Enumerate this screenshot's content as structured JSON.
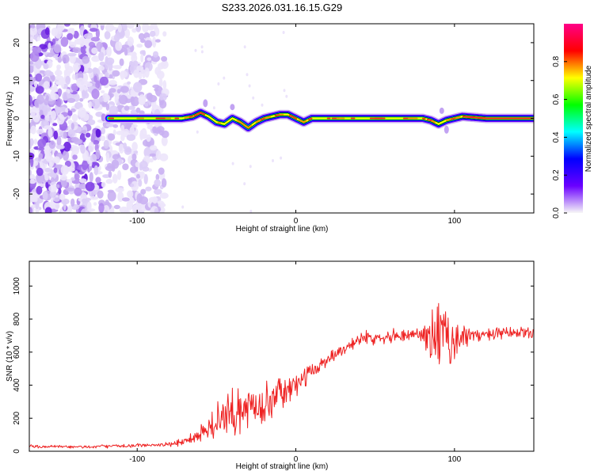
{
  "chart_data": [
    {
      "type": "heatmap",
      "title": "S233.2026.031.16.15.G29",
      "xlabel": "Height of straight line (km)",
      "ylabel": "Frequency (Hz)",
      "xlim": [
        -168,
        150
      ],
      "ylim": [
        -25,
        25
      ],
      "x_ticks": [
        -100,
        0,
        100
      ],
      "y_ticks": [
        -20,
        -10,
        0,
        10,
        20
      ],
      "grid": false,
      "colorbar": {
        "label": "Normalized spectral amplitude",
        "ticks": [
          "0.0",
          "0.2",
          "0.4",
          "0.6",
          "0.8"
        ],
        "range": [
          0,
          1
        ],
        "colors": [
          "#f7f7f7",
          "#6a00ff",
          "#0000ff",
          "#00ffff",
          "#00ff00",
          "#ffff00",
          "#ff0000",
          "#ff0088"
        ]
      },
      "ridge": {
        "x": [
          -118,
          -100,
          -80,
          -72,
          -65,
          -60,
          -55,
          -50,
          -45,
          -40,
          -35,
          -30,
          -25,
          -20,
          -15,
          -10,
          -5,
          0,
          5,
          10,
          20,
          40,
          60,
          80,
          85,
          90,
          95,
          100,
          105,
          120,
          150
        ],
        "f": [
          0,
          0,
          0,
          0,
          0.5,
          1.5,
          0.5,
          -1,
          -1.5,
          0,
          -1,
          -2.5,
          -1,
          0,
          0.5,
          1,
          1,
          0,
          -1,
          0,
          0,
          0,
          0,
          0,
          -0.5,
          -1.5,
          -0.5,
          0,
          0.5,
          0,
          0
        ]
      },
      "noise_region_x": [
        -168,
        -82
      ]
    },
    {
      "type": "line",
      "title": "",
      "xlabel": "Height of straight line (km)",
      "ylabel": "SNR (10 * v/v)",
      "xlim": [
        -168,
        150
      ],
      "ylim": [
        0,
        1150
      ],
      "x_ticks": [
        -100,
        0,
        100
      ],
      "y_ticks": [
        0,
        200,
        400,
        600,
        800,
        1000
      ],
      "grid": false,
      "series": [
        {
          "name": "SNR",
          "color": "#ee2222",
          "envelope_x": [
            -168,
            -140,
            -100,
            -80,
            -70,
            -60,
            -50,
            -40,
            -30,
            -20,
            -10,
            0,
            10,
            20,
            30,
            40,
            60,
            80,
            90,
            100,
            110,
            130,
            150
          ],
          "envelope_mean": [
            30,
            25,
            35,
            40,
            60,
            110,
            170,
            230,
            260,
            300,
            340,
            400,
            480,
            560,
            620,
            680,
            700,
            710,
            680,
            680,
            700,
            710,
            720
          ],
          "envelope_spread": [
            10,
            10,
            10,
            15,
            30,
            60,
            120,
            140,
            130,
            120,
            100,
            70,
            50,
            40,
            40,
            40,
            40,
            50,
            250,
            150,
            40,
            40,
            40
          ]
        }
      ]
    }
  ]
}
